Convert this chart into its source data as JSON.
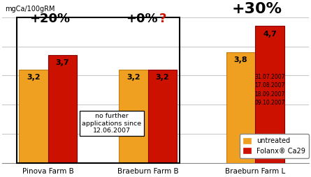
{
  "groups": [
    "Pinova Farm B",
    "Braeburn Farm B",
    "Braeburn Farm L"
  ],
  "untreated": [
    3.2,
    3.2,
    3.8
  ],
  "folanx": [
    3.7,
    3.2,
    4.7
  ],
  "bar_color_untreated": "#F0A020",
  "bar_color_folanx": "#CC1100",
  "ylim": [
    0,
    5.0
  ],
  "yticks": [
    0,
    1,
    2,
    3,
    4,
    5
  ],
  "ylabel": "mgCa/100gRM",
  "question_mark_color": "#CC1100",
  "note_text": "no further\napplications since\n12.06.2007",
  "dates_text": "31.07.2007\n17.08.2007\n18.09.2007\n09.10.2007",
  "legend_untreated": "untreated",
  "legend_folanx": "Folanx® Ca29",
  "bg_color": "#FFFFFF",
  "grid_color": "#BBBBBB",
  "bar_width": 0.38,
  "group_centers": [
    0.65,
    1.95,
    3.35
  ],
  "xlim": [
    0.05,
    4.05
  ]
}
